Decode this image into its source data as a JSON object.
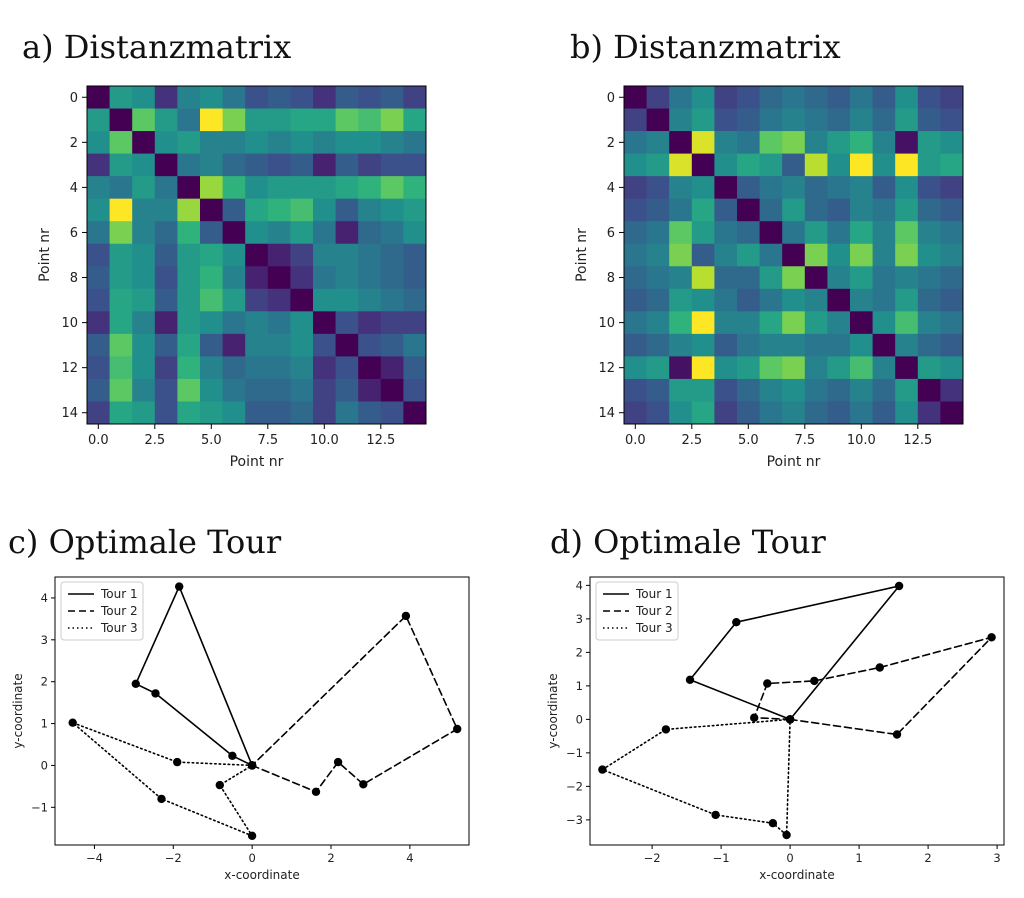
{
  "chart_data": [
    {
      "panel": "a",
      "type": "heatmap",
      "title": "a) Distanzmatrix",
      "xlabel": "Point nr",
      "ylabel": "Point nr",
      "colormap": "viridis",
      "xticks": [
        "0.0",
        "2.5",
        "5.0",
        "7.5",
        "10.0",
        "12.5"
      ],
      "yticks": [
        "0",
        "2",
        "4",
        "6",
        "8",
        "10",
        "12",
        "14"
      ],
      "values": [
        [
          0.0,
          0.55,
          0.5,
          0.15,
          0.45,
          0.5,
          0.4,
          0.25,
          0.3,
          0.25,
          0.15,
          0.3,
          0.25,
          0.3,
          0.2
        ],
        [
          0.55,
          0.0,
          0.75,
          0.55,
          0.4,
          1.0,
          0.8,
          0.55,
          0.55,
          0.6,
          0.6,
          0.75,
          0.7,
          0.8,
          0.6
        ],
        [
          0.5,
          0.75,
          0.0,
          0.5,
          0.55,
          0.45,
          0.45,
          0.5,
          0.45,
          0.5,
          0.45,
          0.5,
          0.5,
          0.45,
          0.4
        ],
        [
          0.15,
          0.55,
          0.5,
          0.0,
          0.4,
          0.45,
          0.35,
          0.3,
          0.25,
          0.3,
          0.1,
          0.3,
          0.2,
          0.25,
          0.25
        ],
        [
          0.45,
          0.4,
          0.55,
          0.4,
          0.0,
          0.85,
          0.65,
          0.5,
          0.55,
          0.55,
          0.55,
          0.6,
          0.65,
          0.75,
          0.65
        ],
        [
          0.5,
          1.0,
          0.45,
          0.45,
          0.85,
          0.0,
          0.3,
          0.6,
          0.65,
          0.7,
          0.5,
          0.3,
          0.45,
          0.5,
          0.55
        ],
        [
          0.4,
          0.8,
          0.45,
          0.35,
          0.65,
          0.3,
          0.0,
          0.5,
          0.45,
          0.55,
          0.4,
          0.1,
          0.35,
          0.4,
          0.5
        ],
        [
          0.25,
          0.55,
          0.5,
          0.3,
          0.55,
          0.6,
          0.5,
          0.0,
          0.1,
          0.2,
          0.45,
          0.45,
          0.4,
          0.35,
          0.3
        ],
        [
          0.3,
          0.55,
          0.5,
          0.25,
          0.55,
          0.65,
          0.45,
          0.1,
          0.0,
          0.15,
          0.4,
          0.45,
          0.4,
          0.35,
          0.3
        ],
        [
          0.25,
          0.6,
          0.55,
          0.3,
          0.55,
          0.7,
          0.55,
          0.2,
          0.15,
          0.0,
          0.5,
          0.5,
          0.45,
          0.4,
          0.35
        ],
        [
          0.15,
          0.6,
          0.45,
          0.1,
          0.55,
          0.5,
          0.4,
          0.45,
          0.4,
          0.5,
          0.0,
          0.25,
          0.15,
          0.2,
          0.2
        ],
        [
          0.3,
          0.75,
          0.5,
          0.3,
          0.6,
          0.3,
          0.1,
          0.45,
          0.45,
          0.5,
          0.25,
          0.0,
          0.25,
          0.3,
          0.4
        ],
        [
          0.25,
          0.7,
          0.5,
          0.2,
          0.65,
          0.45,
          0.35,
          0.4,
          0.4,
          0.45,
          0.15,
          0.25,
          0.0,
          0.1,
          0.3
        ],
        [
          0.3,
          0.75,
          0.45,
          0.25,
          0.75,
          0.5,
          0.4,
          0.35,
          0.35,
          0.4,
          0.2,
          0.3,
          0.1,
          0.0,
          0.25
        ],
        [
          0.2,
          0.6,
          0.55,
          0.25,
          0.6,
          0.55,
          0.5,
          0.3,
          0.3,
          0.35,
          0.2,
          0.4,
          0.3,
          0.25,
          0.0
        ]
      ]
    },
    {
      "panel": "b",
      "type": "heatmap",
      "title": "b) Distanzmatrix",
      "xlabel": "Point nr",
      "ylabel": "Point nr",
      "colormap": "viridis",
      "xticks": [
        "0.0",
        "2.5",
        "5.0",
        "7.5",
        "10.0",
        "12.5"
      ],
      "yticks": [
        "0",
        "2",
        "4",
        "6",
        "8",
        "10",
        "12",
        "14"
      ],
      "values": [
        [
          0.0,
          0.2,
          0.4,
          0.5,
          0.2,
          0.25,
          0.35,
          0.4,
          0.35,
          0.3,
          0.4,
          0.3,
          0.5,
          0.25,
          0.2
        ],
        [
          0.2,
          0.0,
          0.45,
          0.55,
          0.25,
          0.3,
          0.4,
          0.45,
          0.4,
          0.35,
          0.45,
          0.35,
          0.55,
          0.3,
          0.25
        ],
        [
          0.4,
          0.45,
          0.0,
          0.95,
          0.45,
          0.4,
          0.75,
          0.8,
          0.45,
          0.55,
          0.65,
          0.45,
          0.05,
          0.55,
          0.5
        ],
        [
          0.5,
          0.55,
          0.95,
          0.0,
          0.5,
          0.6,
          0.55,
          0.3,
          0.9,
          0.5,
          1.0,
          0.5,
          1.0,
          0.55,
          0.6
        ],
        [
          0.2,
          0.25,
          0.45,
          0.5,
          0.0,
          0.3,
          0.4,
          0.45,
          0.35,
          0.4,
          0.45,
          0.3,
          0.5,
          0.25,
          0.2
        ],
        [
          0.25,
          0.3,
          0.4,
          0.6,
          0.3,
          0.0,
          0.35,
          0.55,
          0.35,
          0.3,
          0.45,
          0.4,
          0.55,
          0.35,
          0.3
        ],
        [
          0.35,
          0.4,
          0.75,
          0.55,
          0.4,
          0.35,
          0.0,
          0.4,
          0.55,
          0.4,
          0.6,
          0.45,
          0.75,
          0.45,
          0.4
        ],
        [
          0.4,
          0.45,
          0.8,
          0.3,
          0.45,
          0.55,
          0.4,
          0.0,
          0.8,
          0.5,
          0.8,
          0.45,
          0.8,
          0.5,
          0.45
        ],
        [
          0.35,
          0.4,
          0.45,
          0.9,
          0.35,
          0.35,
          0.55,
          0.8,
          0.0,
          0.45,
          0.55,
          0.4,
          0.45,
          0.4,
          0.35
        ],
        [
          0.3,
          0.35,
          0.55,
          0.5,
          0.4,
          0.3,
          0.4,
          0.5,
          0.45,
          0.0,
          0.45,
          0.4,
          0.55,
          0.35,
          0.3
        ],
        [
          0.4,
          0.45,
          0.65,
          1.0,
          0.45,
          0.45,
          0.6,
          0.8,
          0.55,
          0.45,
          0.0,
          0.5,
          0.7,
          0.45,
          0.4
        ],
        [
          0.3,
          0.35,
          0.45,
          0.5,
          0.3,
          0.4,
          0.45,
          0.45,
          0.4,
          0.4,
          0.5,
          0.0,
          0.45,
          0.35,
          0.3
        ],
        [
          0.5,
          0.55,
          0.05,
          1.0,
          0.5,
          0.55,
          0.75,
          0.8,
          0.45,
          0.55,
          0.7,
          0.45,
          0.0,
          0.55,
          0.5
        ],
        [
          0.25,
          0.3,
          0.55,
          0.55,
          0.25,
          0.35,
          0.45,
          0.5,
          0.4,
          0.35,
          0.45,
          0.35,
          0.55,
          0.0,
          0.15
        ],
        [
          0.2,
          0.25,
          0.5,
          0.6,
          0.2,
          0.3,
          0.4,
          0.45,
          0.35,
          0.3,
          0.4,
          0.3,
          0.5,
          0.15,
          0.0
        ]
      ]
    },
    {
      "panel": "c",
      "type": "line",
      "title": "c) Optimale Tour",
      "xlabel": "x-coordinate",
      "ylabel": "y-coordinate",
      "xlim": [
        -5.0,
        5.5
      ],
      "ylim": [
        -1.9,
        4.5
      ],
      "xticks": [
        -4,
        -2,
        0,
        2,
        4
      ],
      "yticks": [
        -1,
        0,
        1,
        2,
        3,
        4
      ],
      "legend": "top-left",
      "series": [
        {
          "name": "Tour 1",
          "dash": "solid",
          "points": [
            [
              0,
              0
            ],
            [
              -0.5,
              0.23
            ],
            [
              -2.45,
              1.72
            ],
            [
              -2.95,
              1.95
            ],
            [
              -1.85,
              4.27
            ],
            [
              0,
              0
            ]
          ]
        },
        {
          "name": "Tour 2",
          "dash": "dashed",
          "points": [
            [
              0,
              0
            ],
            [
              1.62,
              -0.63
            ],
            [
              2.18,
              0.08
            ],
            [
              2.82,
              -0.45
            ],
            [
              5.2,
              0.87
            ],
            [
              3.9,
              3.57
            ],
            [
              0,
              0
            ]
          ]
        },
        {
          "name": "Tour 3",
          "dash": "dotted",
          "points": [
            [
              0,
              0
            ],
            [
              -1.9,
              0.08
            ],
            [
              -4.55,
              1.02
            ],
            [
              -2.3,
              -0.8
            ],
            [
              0,
              -1.68
            ],
            [
              -0.82,
              -0.47
            ],
            [
              0,
              0
            ]
          ]
        }
      ]
    },
    {
      "panel": "d",
      "type": "line",
      "title": "d) Optimale Tour",
      "xlabel": "x-coordinate",
      "ylabel": "y-coordinate",
      "xlim": [
        -2.9,
        3.1
      ],
      "ylim": [
        -3.75,
        4.25
      ],
      "xticks": [
        -2,
        -1,
        0,
        1,
        2,
        3
      ],
      "yticks": [
        -3,
        -2,
        -1,
        0,
        1,
        2,
        3,
        4
      ],
      "legend": "top-left",
      "series": [
        {
          "name": "Tour 1",
          "dash": "solid",
          "points": [
            [
              0,
              0
            ],
            [
              -1.45,
              1.18
            ],
            [
              -0.78,
              2.9
            ],
            [
              1.58,
              3.98
            ],
            [
              0,
              0
            ]
          ]
        },
        {
          "name": "Tour 2",
          "dash": "dashed",
          "points": [
            [
              0,
              0
            ],
            [
              -0.52,
              0.05
            ],
            [
              -0.33,
              1.07
            ],
            [
              0.35,
              1.15
            ],
            [
              1.3,
              1.55
            ],
            [
              2.92,
              2.45
            ],
            [
              1.55,
              -0.45
            ],
            [
              0,
              0
            ]
          ]
        },
        {
          "name": "Tour 3",
          "dash": "dotted",
          "points": [
            [
              0,
              0
            ],
            [
              -1.8,
              -0.3
            ],
            [
              -2.72,
              -1.5
            ],
            [
              -1.08,
              -2.85
            ],
            [
              -0.25,
              -3.1
            ],
            [
              -0.05,
              -3.45
            ],
            [
              0,
              0
            ]
          ]
        }
      ]
    }
  ]
}
